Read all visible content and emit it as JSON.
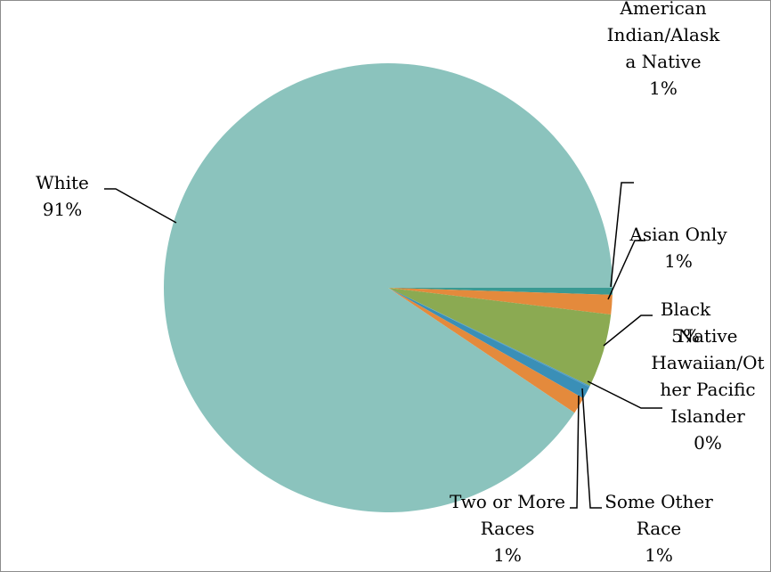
{
  "chart_data": {
    "type": "pie",
    "colors": {
      "white": "#8bc3bd",
      "american_indian": "#3a9a93",
      "asian": "#e48a3c",
      "black": "#8baa52",
      "native_hawaiian": "#4f9cc4",
      "some_other": "#3a8fb7",
      "two_or_more": "#e48a3c"
    },
    "slices": [
      {
        "key": "american_indian",
        "value": 0.5,
        "lines": [
          "American",
          "Indian/Alask",
          "a Native"
        ],
        "pct": "1%"
      },
      {
        "key": "asian",
        "value": 1.4,
        "lines": [
          "Asian Only"
        ],
        "pct": "1%"
      },
      {
        "key": "black",
        "value": 5.3,
        "lines": [
          "Black"
        ],
        "pct": "5%"
      },
      {
        "key": "native_hawaiian",
        "value": 0.1,
        "lines": [
          "Native",
          "Hawaiian/Ot",
          "her Pacific",
          "Islander"
        ],
        "pct": "0%"
      },
      {
        "key": "some_other",
        "value": 0.9,
        "lines": [
          "Some Other",
          "Race"
        ],
        "pct": "1%"
      },
      {
        "key": "two_or_more",
        "value": 1.2,
        "lines": [
          "Two or More",
          "Races"
        ],
        "pct": "1%"
      },
      {
        "key": "white",
        "value": 90.6,
        "lines": [
          "White"
        ],
        "pct": "91%"
      }
    ]
  }
}
